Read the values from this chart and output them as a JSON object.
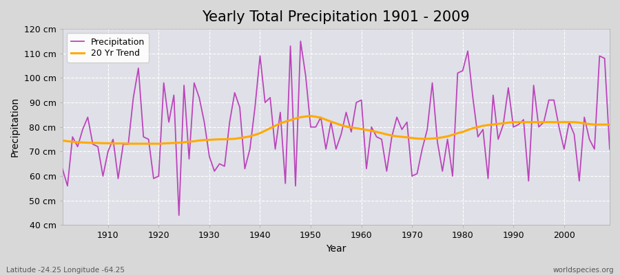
{
  "title": "Yearly Total Precipitation 1901 - 2009",
  "xlabel": "Year",
  "ylabel": "Precipitation",
  "xlim": [
    1901,
    2009
  ],
  "ylim": [
    40,
    120
  ],
  "yticks": [
    40,
    50,
    60,
    70,
    80,
    90,
    100,
    110,
    120
  ],
  "ytick_labels": [
    "40 cm",
    "50 cm",
    "60 cm",
    "70 cm",
    "80 cm",
    "90 cm",
    "100 cm",
    "110 cm",
    "120 cm"
  ],
  "xticks": [
    1910,
    1920,
    1930,
    1940,
    1950,
    1960,
    1970,
    1980,
    1990,
    2000
  ],
  "precipitation_color": "#bb44bb",
  "trend_color": "#ffaa00",
  "fig_bg_color": "#d8d8d8",
  "plot_bg_color": "#e0e0e8",
  "grid_color": "#ffffff",
  "title_fontsize": 15,
  "axis_fontsize": 10,
  "tick_fontsize": 9,
  "legend_fontsize": 9,
  "footer_left": "Latitude -24.25 Longitude -64.25",
  "footer_right": "worldspecies.org",
  "years": [
    1901,
    1902,
    1903,
    1904,
    1905,
    1906,
    1907,
    1908,
    1909,
    1910,
    1911,
    1912,
    1913,
    1914,
    1915,
    1916,
    1917,
    1918,
    1919,
    1920,
    1921,
    1922,
    1923,
    1924,
    1925,
    1926,
    1927,
    1928,
    1929,
    1930,
    1931,
    1932,
    1933,
    1934,
    1935,
    1936,
    1937,
    1938,
    1939,
    1940,
    1941,
    1942,
    1943,
    1944,
    1945,
    1946,
    1947,
    1948,
    1949,
    1950,
    1951,
    1952,
    1953,
    1954,
    1955,
    1956,
    1957,
    1958,
    1959,
    1960,
    1961,
    1962,
    1963,
    1964,
    1965,
    1966,
    1967,
    1968,
    1969,
    1970,
    1971,
    1972,
    1973,
    1974,
    1975,
    1976,
    1977,
    1978,
    1979,
    1980,
    1981,
    1982,
    1983,
    1984,
    1985,
    1986,
    1987,
    1988,
    1989,
    1990,
    1991,
    1992,
    1993,
    1994,
    1995,
    1996,
    1997,
    1998,
    1999,
    2000,
    2001,
    2002,
    2003,
    2004,
    2005,
    2006,
    2007,
    2008,
    2009
  ],
  "precipitation": [
    63,
    56,
    76,
    72,
    79,
    84,
    73,
    72,
    60,
    70,
    75,
    59,
    73,
    73,
    92,
    104,
    76,
    75,
    59,
    60,
    98,
    82,
    93,
    44,
    97,
    67,
    98,
    92,
    82,
    68,
    62,
    65,
    64,
    82,
    94,
    88,
    63,
    71,
    88,
    109,
    90,
    92,
    71,
    86,
    57,
    113,
    56,
    115,
    101,
    80,
    80,
    84,
    71,
    82,
    71,
    77,
    86,
    78,
    90,
    91,
    63,
    80,
    76,
    75,
    62,
    76,
    84,
    79,
    82,
    60,
    61,
    71,
    79,
    98,
    74,
    62,
    75,
    60,
    102,
    103,
    111,
    92,
    76,
    79,
    59,
    93,
    75,
    81,
    96,
    80,
    81,
    83,
    58,
    97,
    80,
    82,
    91,
    91,
    80,
    71,
    82,
    77,
    58,
    84,
    75,
    71,
    109,
    108,
    71
  ],
  "trend": [
    74.5,
    74.2,
    74.0,
    73.8,
    73.7,
    73.6,
    73.5,
    73.5,
    73.4,
    73.4,
    73.3,
    73.3,
    73.3,
    73.2,
    73.2,
    73.2,
    73.2,
    73.2,
    73.2,
    73.2,
    73.3,
    73.4,
    73.5,
    73.6,
    73.8,
    74.0,
    74.2,
    74.5,
    74.7,
    74.8,
    74.9,
    75.0,
    75.0,
    75.1,
    75.2,
    75.5,
    75.8,
    76.2,
    76.8,
    77.5,
    78.5,
    79.5,
    80.5,
    81.5,
    82.2,
    82.8,
    83.5,
    84.0,
    84.3,
    84.5,
    84.2,
    83.8,
    83.0,
    82.2,
    81.5,
    80.8,
    80.2,
    79.8,
    79.5,
    79.2,
    78.8,
    78.5,
    78.0,
    77.5,
    77.0,
    76.5,
    76.2,
    76.0,
    75.8,
    75.5,
    75.3,
    75.2,
    75.2,
    75.3,
    75.5,
    75.8,
    76.2,
    76.8,
    77.5,
    78.0,
    78.8,
    79.5,
    80.0,
    80.5,
    80.8,
    81.0,
    81.3,
    81.5,
    81.8,
    82.0,
    82.0,
    82.0,
    82.0,
    82.0,
    82.0,
    82.0,
    82.0,
    82.0,
    82.0,
    82.0,
    82.0,
    82.0,
    81.8,
    81.5,
    81.2,
    81.0,
    81.0,
    81.0,
    81.0
  ]
}
